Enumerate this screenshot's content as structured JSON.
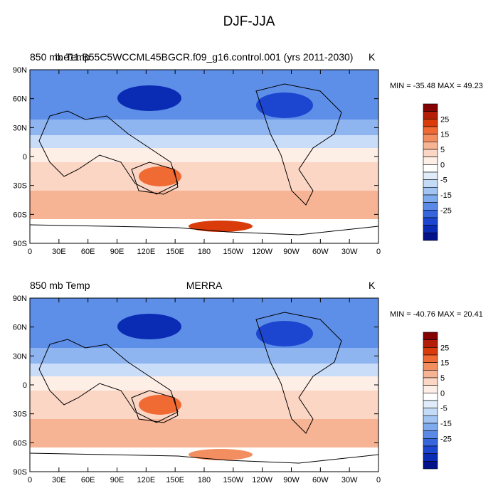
{
  "title": "DJF-JJA",
  "panels": [
    {
      "left_label": "850 mb Temp",
      "center_label": "b.e11.B55C5WCCML45BGCR.f09_g16.control.001 (yrs 2011-2030)",
      "units": "K",
      "minmax_text": "MIN = -35.48 MAX =  49.23"
    },
    {
      "left_label": "850 mb Temp",
      "center_label": "MERRA",
      "units": "K",
      "minmax_text": "MIN = -40.76 MAX =  20.41"
    }
  ],
  "lat_labels": [
    "90N",
    "60N",
    "30N",
    "0",
    "30S",
    "60S",
    "90S"
  ],
  "lon_labels": [
    "0",
    "30E",
    "60E",
    "90E",
    "120E",
    "150E",
    "180",
    "150W",
    "120W",
    "90W",
    "60W",
    "30W",
    "0"
  ],
  "colorbar": {
    "labels": [
      "25",
      "15",
      "5",
      "0",
      "-5",
      "-15",
      "-25"
    ],
    "colors": [
      "#830303",
      "#b21e07",
      "#d93b0a",
      "#f06a33",
      "#f28e60",
      "#f7b494",
      "#fbd6c5",
      "#fdeee6",
      "#ffffff",
      "#e0ecfa",
      "#c4dbf7",
      "#a1c4f3",
      "#7eaaee",
      "#5a8ae6",
      "#3766dc",
      "#1c46cf",
      "#0a2cb4",
      "#04128a"
    ]
  }
}
